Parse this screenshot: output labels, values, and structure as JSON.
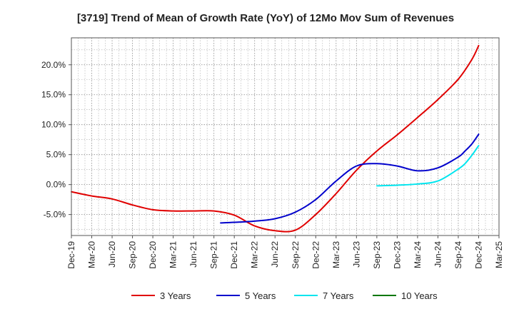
{
  "chart_data": {
    "type": "line",
    "title": "[3719]  Trend of Mean of Growth Rate (YoY) of 12Mo Mov Sum of Revenues",
    "xlabel": "",
    "ylabel": "",
    "x_categories": [
      "Dec-19",
      "Mar-20",
      "Jun-20",
      "Sep-20",
      "Dec-20",
      "Mar-21",
      "Jun-21",
      "Sep-21",
      "Dec-21",
      "Mar-22",
      "Jun-22",
      "Sep-22",
      "Dec-22",
      "Mar-23",
      "Jun-23",
      "Sep-23",
      "Dec-23",
      "Mar-24",
      "Jun-24",
      "Sep-24",
      "Dec-24",
      "Mar-25"
    ],
    "ylim": [
      -8.5,
      24.5
    ],
    "y_ticks": [
      -5,
      0,
      5,
      10,
      15,
      20
    ],
    "y_tick_labels": [
      "-5.0%",
      "0.0%",
      "5.0%",
      "10.0%",
      "15.0%",
      "20.0%"
    ],
    "grid": true,
    "legend_position": "bottom",
    "series": [
      {
        "name": "3 Years",
        "color": "#e00000",
        "x_index": [
          0,
          1,
          2,
          3,
          4,
          5,
          6,
          7,
          8,
          9,
          10,
          11,
          12,
          13,
          14,
          15,
          16,
          17,
          18,
          19,
          19.67,
          20
        ],
        "values": [
          -1.2,
          -1.9,
          -2.4,
          -3.4,
          -4.2,
          -4.4,
          -4.4,
          -4.4,
          -5.1,
          -6.9,
          -7.7,
          -7.6,
          -5.0,
          -1.5,
          2.4,
          5.6,
          8.3,
          11.2,
          14.2,
          17.6,
          20.9,
          23.2
        ]
      },
      {
        "name": "5 Years",
        "color": "#0000cc",
        "x_index": [
          7.33,
          8,
          9,
          10,
          11,
          12,
          13,
          14,
          15,
          16,
          17,
          18,
          19,
          19.33,
          19.67,
          20
        ],
        "values": [
          -6.4,
          -6.3,
          -6.1,
          -5.7,
          -4.6,
          -2.5,
          0.6,
          3.1,
          3.5,
          3.1,
          2.3,
          2.8,
          4.6,
          5.6,
          6.8,
          8.4
        ]
      },
      {
        "name": "7 Years",
        "color": "#00e5ee",
        "x_index": [
          15,
          16,
          17,
          18,
          19,
          19.33,
          19.67,
          20
        ],
        "values": [
          -0.2,
          -0.1,
          0.1,
          0.6,
          2.6,
          3.5,
          4.9,
          6.5
        ]
      },
      {
        "name": "10 Years",
        "color": "#007700",
        "x_index": [],
        "values": []
      }
    ]
  }
}
